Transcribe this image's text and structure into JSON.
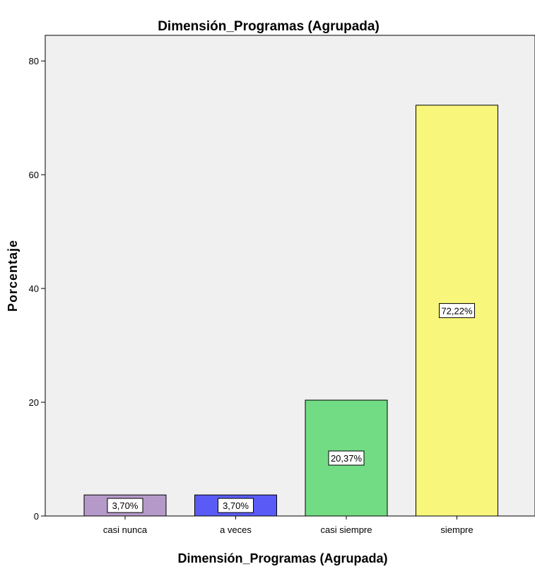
{
  "chart_data": {
    "type": "bar",
    "title": "Dimensión_Programas (Agrupada)",
    "xlabel": "Dimensión_Programas (Agrupada)",
    "ylabel": "Porcentaje",
    "categories": [
      "casi nunca",
      "a veces",
      "casi siempre",
      "siempre"
    ],
    "values": [
      3.7,
      3.7,
      20.37,
      72.22
    ],
    "data_labels": [
      "3,70%",
      "3,70%",
      "20,37%",
      "72,22%"
    ],
    "colors": [
      "#b59ac9",
      "#5a5bf7",
      "#72dc85",
      "#f8f77b"
    ],
    "ylim": [
      0,
      84.5
    ],
    "yticks": [
      0,
      20,
      40,
      60,
      80
    ],
    "grid": false,
    "plot_background": "#f0f0f0"
  }
}
